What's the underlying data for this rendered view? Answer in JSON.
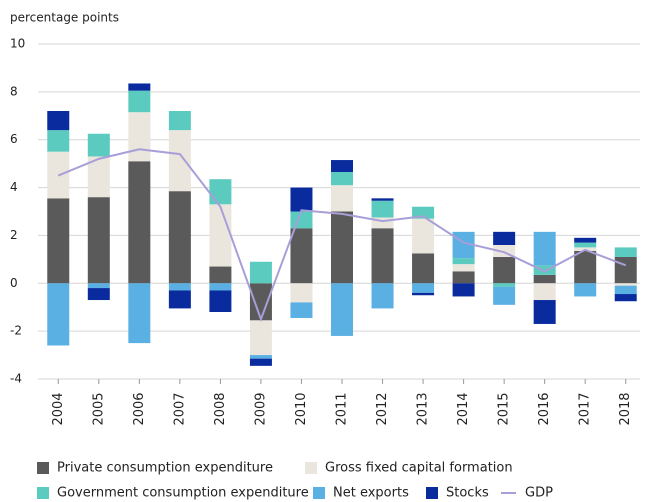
{
  "chart_data": {
    "type": "bar",
    "stacked": true,
    "ylabel": "percentage points",
    "categories": [
      "2004",
      "2005",
      "2006",
      "2007",
      "2008",
      "2009",
      "2010",
      "2011",
      "2012",
      "2013",
      "2014",
      "2015",
      "2016",
      "2017",
      "2018"
    ],
    "series": [
      {
        "name": "Private consumption expenditure",
        "color": "#5a5a5a",
        "values": [
          3.55,
          3.6,
          5.1,
          3.85,
          0.7,
          -1.55,
          2.3,
          3.0,
          2.3,
          1.25,
          0.5,
          1.1,
          0.35,
          1.35,
          1.1
        ]
      },
      {
        "name": "Gross fixed capital formation",
        "color": "#ebe6dd",
        "values": [
          1.95,
          1.7,
          2.05,
          2.55,
          2.6,
          -1.45,
          -0.8,
          1.1,
          0.45,
          1.45,
          0.3,
          0.5,
          -0.7,
          0.15,
          -0.1
        ]
      },
      {
        "name": "Government consumption expenditure",
        "color": "#5ccbbf",
        "values": [
          0.9,
          0.95,
          0.9,
          0.8,
          1.05,
          0.9,
          0.7,
          0.55,
          0.7,
          0.5,
          0.25,
          -0.15,
          0.4,
          0.2,
          0.4
        ]
      },
      {
        "name": "Net exports",
        "color": "#5aafe3",
        "values": [
          -2.6,
          -0.2,
          -2.5,
          -0.3,
          -0.3,
          -0.15,
          -0.65,
          -2.2,
          -1.05,
          -0.4,
          1.1,
          -0.75,
          1.4,
          -0.55,
          -0.35
        ]
      },
      {
        "name": "Stocks",
        "color": "#0a2b9e",
        "values": [
          0.8,
          -0.5,
          0.3,
          -0.75,
          -0.9,
          -0.3,
          1.0,
          0.5,
          0.1,
          -0.1,
          -0.55,
          0.55,
          -1.0,
          0.2,
          -0.3
        ]
      }
    ],
    "line": {
      "name": "GDP",
      "color": "#a89ed8",
      "values": [
        4.5,
        5.2,
        5.6,
        5.4,
        3.2,
        -1.5,
        3.05,
        2.9,
        2.6,
        2.8,
        1.7,
        1.3,
        0.5,
        1.4,
        0.75
      ]
    },
    "ylim": [
      -4,
      10
    ],
    "yticks": [
      -4,
      -2,
      0,
      2,
      4,
      6,
      8,
      10
    ],
    "grid": true
  }
}
